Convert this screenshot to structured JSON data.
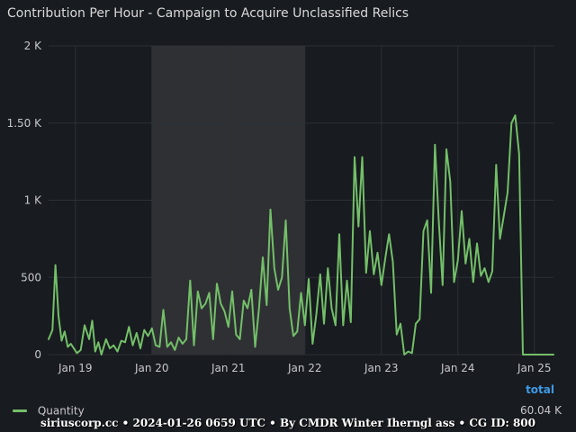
{
  "panel": {
    "title": "Contribution Per Hour - Campaign to Acquire Unclassified Relics"
  },
  "legend": {
    "total_header": "total",
    "series_name": "Quantity",
    "total_value": "60.04 K"
  },
  "footer": {
    "text": "siriuscorp.cc • 2024-01-26 0659 UTC • By CMDR Winter Iherngl ass • CG ID: 800"
  },
  "colors": {
    "background": "#181b1f",
    "grid": "#2c3036",
    "highlight": "#2f3034",
    "series": "#73bf69",
    "total": "#3d9be9"
  },
  "chart_data": {
    "type": "line",
    "title": "Contribution Per Hour - Campaign to Acquire Unclassified Relics",
    "xlabel": "",
    "ylabel": "",
    "y_ticks": [
      "0",
      "500",
      "1 K",
      "1.50 K",
      "2 K"
    ],
    "ylim": [
      0,
      2000
    ],
    "x_ticks": [
      "Jan 19",
      "Jan 20",
      "Jan 21",
      "Jan 22",
      "Jan 23",
      "Jan 24",
      "Jan 25"
    ],
    "x_unit": "days since Jan 19 00:00 UTC",
    "xlim": [
      -0.35,
      6.25
    ],
    "highlight_region": {
      "from": 1.0,
      "to": 3.0
    },
    "legend_position": "bottom",
    "grid": true,
    "series": [
      {
        "name": "Quantity",
        "x": [
          -0.35,
          -0.3,
          -0.26,
          -0.22,
          -0.18,
          -0.14,
          -0.1,
          -0.06,
          -0.02,
          0.02,
          0.07,
          0.12,
          0.18,
          0.22,
          0.26,
          0.3,
          0.34,
          0.4,
          0.45,
          0.5,
          0.55,
          0.6,
          0.65,
          0.7,
          0.75,
          0.8,
          0.85,
          0.9,
          0.95,
          1.0,
          1.05,
          1.1,
          1.15,
          1.2,
          1.25,
          1.3,
          1.35,
          1.4,
          1.45,
          1.5,
          1.55,
          1.6,
          1.65,
          1.7,
          1.75,
          1.8,
          1.85,
          1.9,
          1.95,
          2.0,
          2.05,
          2.1,
          2.15,
          2.2,
          2.25,
          2.3,
          2.35,
          2.4,
          2.45,
          2.5,
          2.55,
          2.6,
          2.65,
          2.7,
          2.75,
          2.8,
          2.85,
          2.9,
          2.95,
          3.0,
          3.05,
          3.1,
          3.15,
          3.2,
          3.25,
          3.3,
          3.35,
          3.4,
          3.45,
          3.5,
          3.55,
          3.6,
          3.65,
          3.7,
          3.75,
          3.8,
          3.85,
          3.9,
          3.95,
          4.0,
          4.05,
          4.1,
          4.15,
          4.2,
          4.25,
          4.3,
          4.35,
          4.4,
          4.45,
          4.5,
          4.55,
          4.6,
          4.65,
          4.7,
          4.75,
          4.8,
          4.85,
          4.9,
          4.95,
          5.0,
          5.05,
          5.1,
          5.15,
          5.2,
          5.25,
          5.3,
          5.35,
          5.4,
          5.45,
          5.5,
          5.55,
          5.6,
          5.65,
          5.7,
          5.75,
          5.8,
          5.85,
          5.9,
          5.95,
          6.0,
          6.05,
          6.1,
          6.15,
          6.2,
          6.25
        ],
        "y": [
          100,
          160,
          580,
          250,
          90,
          150,
          50,
          70,
          40,
          10,
          30,
          190,
          100,
          220,
          20,
          80,
          0,
          100,
          40,
          60,
          20,
          90,
          80,
          180,
          60,
          140,
          40,
          160,
          120,
          170,
          60,
          50,
          290,
          50,
          80,
          30,
          110,
          70,
          100,
          480,
          60,
          410,
          300,
          330,
          400,
          100,
          460,
          330,
          280,
          180,
          410,
          130,
          100,
          350,
          300,
          420,
          50,
          300,
          630,
          320,
          940,
          560,
          420,
          500,
          870,
          300,
          120,
          150,
          400,
          190,
          490,
          70,
          260,
          520,
          200,
          560,
          300,
          190,
          780,
          190,
          480,
          210,
          1280,
          830,
          1280,
          530,
          800,
          520,
          660,
          450,
          620,
          780,
          600,
          130,
          200,
          0,
          20,
          10,
          200,
          230,
          800,
          870,
          400,
          1360,
          870,
          450,
          1330,
          1120,
          470,
          610,
          930,
          590,
          750,
          470,
          720,
          510,
          560,
          470,
          540,
          1230,
          750,
          900,
          1050,
          1500,
          1550,
          1300,
          0,
          0,
          0,
          0,
          0,
          0,
          0,
          0,
          0
        ]
      }
    ]
  }
}
